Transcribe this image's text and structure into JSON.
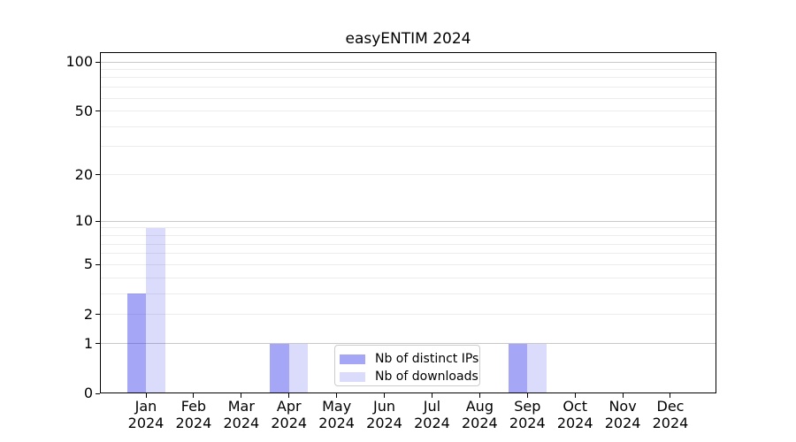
{
  "chart_data": {
    "type": "bar",
    "title": "easyENTIM 2024",
    "year": "2024",
    "months": [
      "Jan",
      "Feb",
      "Mar",
      "Apr",
      "May",
      "Jun",
      "Jul",
      "Aug",
      "Sep",
      "Oct",
      "Nov",
      "Dec"
    ],
    "series": [
      {
        "name": "Nb of distinct IPs",
        "color": "rgba(43,43,235,0.42)",
        "values": [
          3,
          0,
          0,
          1,
          0,
          0,
          0,
          0,
          1,
          0,
          0,
          0
        ]
      },
      {
        "name": "Nb of downloads",
        "color": "rgba(43,43,235,0.17)",
        "values": [
          9,
          0,
          0,
          1,
          0,
          0,
          0,
          0,
          1,
          0,
          0,
          0
        ]
      }
    ],
    "yscale": "log1p",
    "ylim": [
      0,
      115
    ],
    "yticks": [
      0,
      1,
      2,
      5,
      10,
      20,
      50,
      100
    ],
    "gridlines": {
      "major": [
        1,
        10,
        100
      ],
      "minor": [
        2,
        3,
        4,
        5,
        6,
        7,
        8,
        9,
        20,
        30,
        40,
        50,
        60,
        70,
        80,
        90
      ]
    },
    "legend": {
      "items": [
        "Nb of distinct IPs",
        "Nb of downloads"
      ],
      "position": "lower center"
    }
  },
  "colors": {
    "background": "#ffffff",
    "spine": "#000000",
    "major_grid": "#c8c8c8",
    "minor_grid": "#ececec",
    "text": "#000000"
  }
}
